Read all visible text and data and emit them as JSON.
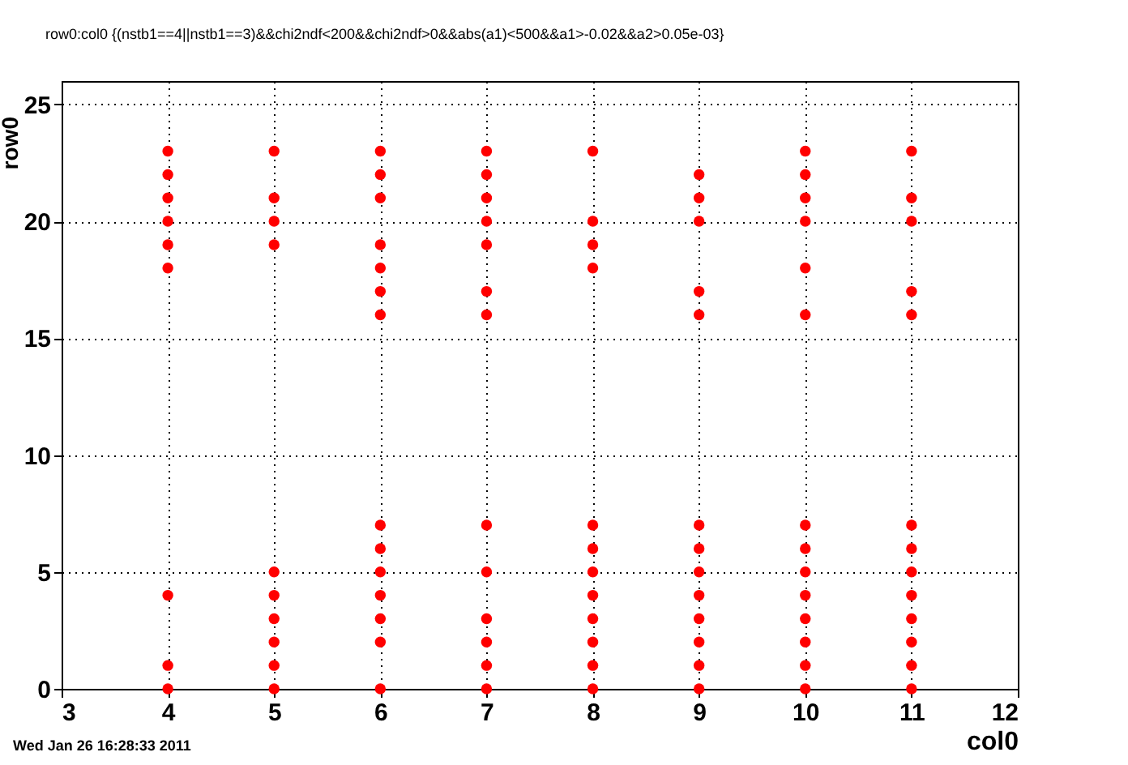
{
  "chart_data": {
    "type": "scatter",
    "title": "row0:col0 {(nstb1==4||nstb1==3)&&chi2ndf<200&&chi2ndf>0&&abs(a1)<500&&a1>-0.02&&a2>0.05e-03}",
    "xlabel": "col0",
    "ylabel": "row0",
    "x": [
      4,
      4,
      4,
      4,
      4,
      4,
      4,
      4,
      4,
      5,
      5,
      5,
      5,
      5,
      5,
      5,
      5,
      5,
      5,
      6,
      6,
      6,
      6,
      6,
      6,
      6,
      6,
      6,
      6,
      6,
      6,
      6,
      6,
      7,
      7,
      7,
      7,
      7,
      7,
      7,
      7,
      7,
      7,
      7,
      7,
      7,
      8,
      8,
      8,
      8,
      8,
      8,
      8,
      8,
      8,
      8,
      8,
      8,
      9,
      9,
      9,
      9,
      9,
      9,
      9,
      9,
      9,
      9,
      9,
      9,
      9,
      10,
      10,
      10,
      10,
      10,
      10,
      10,
      10,
      10,
      10,
      10,
      10,
      10,
      10,
      11,
      11,
      11,
      11,
      11,
      11,
      11,
      11,
      11,
      11,
      11,
      11,
      11
    ],
    "values": [
      23,
      22,
      21,
      20,
      19,
      18,
      4,
      1,
      0,
      23,
      21,
      20,
      19,
      5,
      4,
      3,
      2,
      1,
      0,
      23,
      22,
      21,
      19,
      18,
      17,
      16,
      7,
      6,
      5,
      4,
      3,
      2,
      0,
      23,
      22,
      21,
      20,
      19,
      17,
      16,
      7,
      5,
      3,
      2,
      1,
      0,
      23,
      20,
      19,
      18,
      7,
      6,
      5,
      4,
      3,
      2,
      1,
      0,
      22,
      21,
      20,
      17,
      16,
      7,
      6,
      5,
      4,
      3,
      2,
      1,
      0,
      23,
      22,
      21,
      20,
      18,
      16,
      7,
      6,
      5,
      4,
      3,
      2,
      1,
      0,
      23,
      21,
      20,
      17,
      16,
      7,
      6,
      5,
      4,
      3,
      2,
      1,
      0
    ],
    "color": "#ff0000",
    "marker": "circle",
    "grid": true,
    "xlim": [
      3,
      12
    ],
    "xticks": [
      3,
      4,
      5,
      6,
      7,
      8,
      9,
      10,
      11,
      12
    ],
    "ylim": [
      0,
      26
    ],
    "yticks": [
      0,
      5,
      10,
      15,
      20,
      25
    ],
    "annotations": [
      "Wed Jan 26 16:28:33 2011"
    ]
  }
}
